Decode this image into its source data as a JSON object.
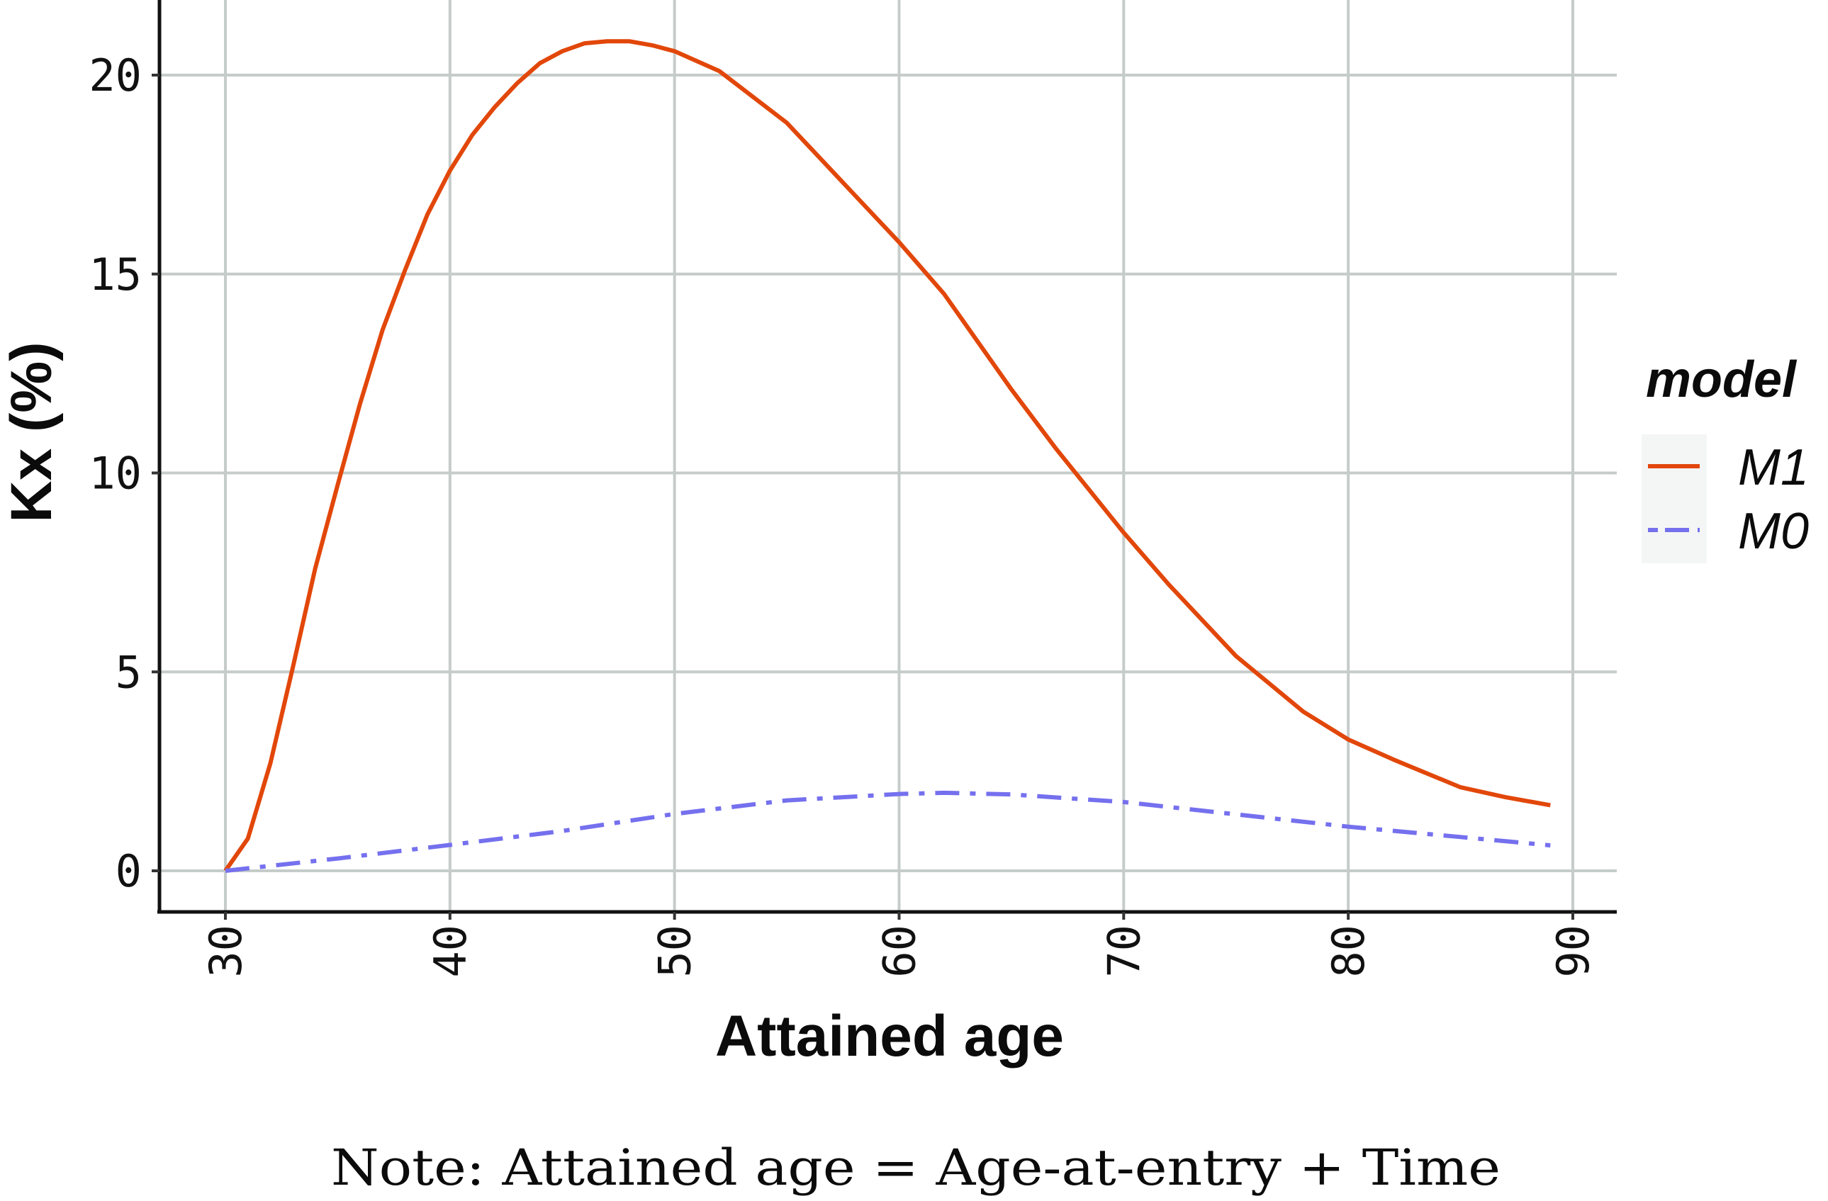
{
  "chart_data": {
    "type": "line",
    "title": "",
    "xlabel": "Attained age",
    "ylabel": "Kx (%)",
    "xlim": [
      27,
      92
    ],
    "ylim": [
      -1,
      22
    ],
    "grid": true,
    "x_ticks": [
      30,
      40,
      50,
      60,
      70,
      80,
      90
    ],
    "y_ticks": [
      0,
      5,
      10,
      15,
      20
    ],
    "legend": {
      "title": "model",
      "position": "right",
      "entries": [
        "M1",
        "M0"
      ]
    },
    "annotation": "Note: Attained age = Age-at-entry + Time",
    "series": [
      {
        "name": "M1",
        "color": "#E2470A",
        "linestyle": "solid",
        "x": [
          30,
          31,
          32,
          33,
          34,
          35,
          36,
          37,
          38,
          39,
          40,
          41,
          42,
          43,
          44,
          45,
          46,
          47,
          48,
          49,
          50,
          52,
          55,
          58,
          60,
          62,
          65,
          67,
          70,
          72,
          75,
          78,
          80,
          82,
          85,
          87,
          89
        ],
        "values": [
          0,
          0.81,
          2.7,
          5.1,
          7.6,
          9.7,
          11.75,
          13.6,
          15.1,
          16.5,
          17.6,
          18.5,
          19.2,
          19.8,
          20.3,
          20.6,
          20.8,
          20.85,
          20.85,
          20.75,
          20.6,
          20.1,
          18.8,
          17.0,
          15.8,
          14.5,
          12.1,
          10.6,
          8.5,
          7.2,
          5.4,
          4.0,
          3.3,
          2.8,
          2.1,
          1.85,
          1.65
        ]
      },
      {
        "name": "M0",
        "color": "#7570EE",
        "linestyle": "dashdot",
        "x": [
          30,
          35,
          40,
          45,
          50,
          55,
          60,
          62,
          65,
          70,
          75,
          80,
          85,
          89
        ],
        "values": [
          0,
          0.31,
          0.65,
          1.0,
          1.43,
          1.77,
          1.93,
          1.96,
          1.92,
          1.73,
          1.42,
          1.11,
          0.85,
          0.64
        ]
      }
    ]
  },
  "axes": {
    "x_title": "Attained age",
    "y_title": "Kx (%)",
    "x_tick_labels": [
      "30",
      "40",
      "50",
      "60",
      "70",
      "80",
      "90"
    ],
    "y_tick_labels": [
      "0",
      "5",
      "10",
      "15",
      "20"
    ]
  },
  "legend": {
    "title": "model",
    "items": [
      {
        "label": "M1",
        "color": "#E2470A"
      },
      {
        "label": "M0",
        "color": "#7570EE"
      }
    ]
  },
  "note": "Note:  Attained age = Age-at-entry + Time",
  "colors": {
    "grid": "#C5CCCA",
    "axis": "#111111",
    "legend_key_bg": "#F4F5F5"
  }
}
